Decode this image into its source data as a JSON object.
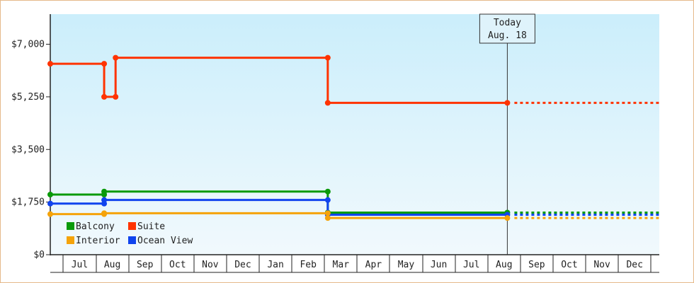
{
  "chart_data": {
    "type": "line",
    "title": "",
    "xlabel": "",
    "ylabel": "",
    "ylim": [
      0,
      8000
    ],
    "y_ticks": [
      {
        "value": 0,
        "label": "$0"
      },
      {
        "value": 1750,
        "label": "$1,750"
      },
      {
        "value": 3500,
        "label": "$3,500"
      },
      {
        "value": 5250,
        "label": "$5,250"
      },
      {
        "value": 7000,
        "label": "$7,000"
      }
    ],
    "x_range": [
      0,
      18.8
    ],
    "x_ticks": [
      "Jul",
      "Aug",
      "Sep",
      "Oct",
      "Nov",
      "Dec",
      "Jan",
      "Feb",
      "Mar",
      "Apr",
      "May",
      "Jun",
      "Jul",
      "Aug",
      "Sep",
      "Oct",
      "Nov",
      "Dec"
    ],
    "grid": false,
    "today": {
      "x": 14.0,
      "line1": "Today",
      "line2": "Aug. 18"
    },
    "legend": {
      "placement": "bottom-left",
      "columns": 2
    },
    "series": [
      {
        "name": "Suite",
        "color": "#ff3300",
        "points": [
          [
            0,
            6350
          ],
          [
            1.65,
            6350
          ],
          [
            1.65,
            5250
          ],
          [
            2.0,
            5250
          ],
          [
            2.0,
            6550
          ],
          [
            8.5,
            6550
          ],
          [
            8.5,
            5050
          ],
          [
            14.0,
            5050
          ]
        ],
        "markers": [
          [
            0,
            6350
          ],
          [
            1.65,
            6350
          ],
          [
            1.65,
            5250
          ],
          [
            2.0,
            5250
          ],
          [
            2.0,
            6550
          ],
          [
            8.5,
            6550
          ],
          [
            8.5,
            5050
          ],
          [
            14.0,
            5050
          ]
        ],
        "projection": 5050
      },
      {
        "name": "Balcony",
        "color": "#0a9a0a",
        "points": [
          [
            0,
            2000
          ],
          [
            1.65,
            2000
          ],
          [
            1.65,
            2100
          ],
          [
            8.5,
            2100
          ],
          [
            8.5,
            1400
          ],
          [
            14.0,
            1400
          ]
        ],
        "markers": [
          [
            0,
            2000
          ],
          [
            1.65,
            2000
          ],
          [
            1.65,
            2100
          ],
          [
            8.5,
            2100
          ],
          [
            8.5,
            1400
          ],
          [
            14.0,
            1400
          ]
        ],
        "projection": 1400
      },
      {
        "name": "Ocean View",
        "color": "#1144ee",
        "points": [
          [
            0,
            1700
          ],
          [
            1.65,
            1700
          ],
          [
            1.65,
            1820
          ],
          [
            8.5,
            1820
          ],
          [
            8.5,
            1330
          ],
          [
            14.0,
            1330
          ]
        ],
        "markers": [
          [
            0,
            1700
          ],
          [
            1.65,
            1700
          ],
          [
            1.65,
            1820
          ],
          [
            8.5,
            1820
          ],
          [
            8.5,
            1330
          ],
          [
            14.0,
            1330
          ]
        ],
        "projection": 1330
      },
      {
        "name": "Interior",
        "color": "#f5a30a",
        "points": [
          [
            0,
            1350
          ],
          [
            1.65,
            1350
          ],
          [
            1.65,
            1380
          ],
          [
            8.5,
            1380
          ],
          [
            8.5,
            1220
          ],
          [
            14.0,
            1220
          ]
        ],
        "markers": [
          [
            0,
            1350
          ],
          [
            1.65,
            1350
          ],
          [
            1.65,
            1380
          ],
          [
            8.5,
            1380
          ],
          [
            8.5,
            1220
          ],
          [
            14.0,
            1220
          ]
        ],
        "projection": 1220
      }
    ]
  }
}
